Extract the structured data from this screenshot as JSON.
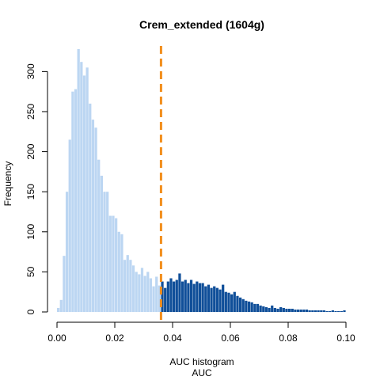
{
  "chart_data": {
    "type": "bar",
    "title": "Crem_extended (1604g)",
    "xlabel": "AUC histogram",
    "xlabel2": "AUC",
    "ylabel": "Frequency",
    "xlim": [
      0,
      0.1
    ],
    "ylim": [
      0,
      330
    ],
    "bin_width": 0.001,
    "x_ticks": [
      0.0,
      0.02,
      0.04,
      0.06,
      0.08,
      0.1
    ],
    "x_tick_labels": [
      "0.00",
      "0.02",
      "0.04",
      "0.06",
      "0.08",
      "0.10"
    ],
    "y_ticks": [
      0,
      50,
      100,
      150,
      200,
      250,
      300
    ],
    "y_tick_labels": [
      "0",
      "50",
      "100",
      "150",
      "200",
      "250",
      "300"
    ],
    "threshold": 0.036,
    "threshold_style": "dashed",
    "grid": false,
    "legend": "none",
    "colors": {
      "below_threshold": "#bcd6f2",
      "above_threshold": "#104f99",
      "threshold_line": "#f28e1c",
      "axis": "#000000"
    },
    "bins_start": [
      0.0,
      0.001,
      0.002,
      0.003,
      0.004,
      0.005,
      0.006,
      0.007,
      0.008,
      0.009,
      0.01,
      0.011,
      0.012,
      0.013,
      0.014,
      0.015,
      0.016,
      0.017,
      0.018,
      0.019,
      0.02,
      0.021,
      0.022,
      0.023,
      0.024,
      0.025,
      0.026,
      0.027,
      0.028,
      0.029,
      0.03,
      0.031,
      0.032,
      0.033,
      0.034,
      0.035,
      0.036,
      0.037,
      0.038,
      0.039,
      0.04,
      0.041,
      0.042,
      0.043,
      0.044,
      0.045,
      0.046,
      0.047,
      0.048,
      0.049,
      0.05,
      0.051,
      0.052,
      0.053,
      0.054,
      0.055,
      0.056,
      0.057,
      0.058,
      0.059,
      0.06,
      0.061,
      0.062,
      0.063,
      0.064,
      0.065,
      0.066,
      0.067,
      0.068,
      0.069,
      0.07,
      0.071,
      0.072,
      0.073,
      0.074,
      0.075,
      0.076,
      0.077,
      0.078,
      0.079,
      0.08,
      0.081,
      0.082,
      0.083,
      0.084,
      0.085,
      0.086,
      0.087,
      0.088,
      0.089,
      0.09,
      0.091,
      0.092,
      0.093,
      0.094,
      0.095,
      0.096,
      0.097,
      0.098,
      0.099
    ],
    "values": [
      5,
      15,
      70,
      150,
      215,
      275,
      278,
      328,
      312,
      295,
      305,
      260,
      240,
      230,
      190,
      170,
      150,
      150,
      120,
      120,
      117,
      100,
      97,
      65,
      71,
      65,
      58,
      50,
      47,
      55,
      45,
      50,
      42,
      32,
      44,
      33,
      38,
      30,
      38,
      42,
      38,
      40,
      48,
      38,
      40,
      36,
      40,
      35,
      38,
      36,
      36,
      32,
      34,
      30,
      32,
      30,
      28,
      34,
      25,
      24,
      22,
      25,
      20,
      18,
      16,
      14,
      13,
      12,
      10,
      10,
      8,
      7,
      6,
      5,
      8,
      5,
      4,
      6,
      5,
      4,
      4,
      4,
      3,
      3,
      3,
      3,
      3,
      2,
      2,
      2,
      2,
      2,
      2,
      1,
      1,
      2,
      1,
      1,
      1,
      2
    ]
  }
}
